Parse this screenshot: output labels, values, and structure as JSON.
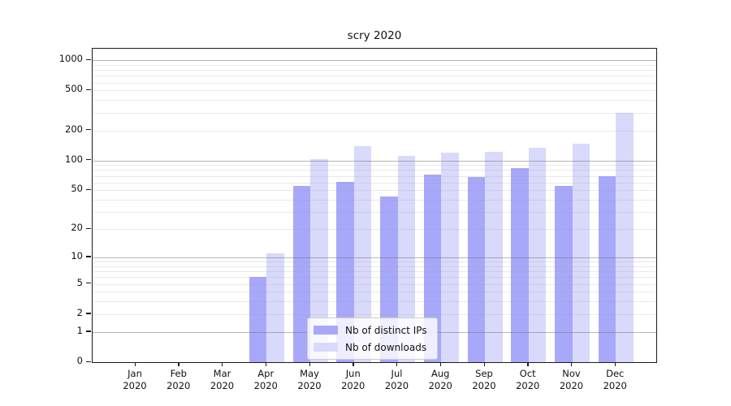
{
  "title": "scry 2020",
  "chart_data": {
    "type": "bar",
    "title": "scry 2020",
    "categories": [
      "Jan 2020",
      "Feb 2020",
      "Mar 2020",
      "Apr 2020",
      "May 2020",
      "Jun 2020",
      "Jul 2020",
      "Aug 2020",
      "Sep 2020",
      "Oct 2020",
      "Nov 2020",
      "Dec 2020"
    ],
    "series": [
      {
        "name": "Nb of distinct IPs",
        "color": "#a8a8fa",
        "values": [
          0,
          0,
          0,
          6,
          55,
          61,
          43,
          72,
          68,
          83,
          55,
          70
        ]
      },
      {
        "name": "Nb of downloads",
        "color": "#d9d9fb",
        "values": [
          0,
          0,
          0,
          11,
          103,
          140,
          110,
          119,
          122,
          133,
          148,
          300
        ]
      }
    ],
    "xlabel": "",
    "ylabel": "",
    "y_scale": "log1p",
    "y_ticks": [
      0,
      1,
      2,
      5,
      10,
      20,
      50,
      100,
      200,
      500,
      1000
    ],
    "ylim": [
      0,
      1300
    ],
    "grid": true,
    "legend_position": "lower center"
  },
  "colors": {
    "series1": "#a8a8fa",
    "series2": "#d9d9fb",
    "grid_major": "#b8b8b8",
    "grid_minor": "#e6e6e6",
    "spine": "#1a1a1a"
  }
}
